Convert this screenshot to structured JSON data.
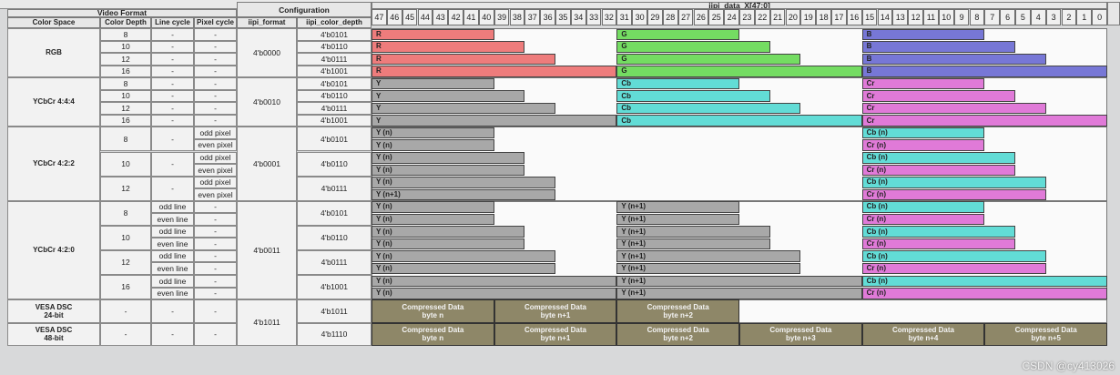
{
  "header": {
    "video_format": "Video Format",
    "configuration": "Configuration",
    "data_bus": "iipi_data_X[47:0]",
    "color_space": "Color Space",
    "color_depth": "Color Depth",
    "line_cycle": "Line cycle",
    "pixel_cycle": "Pixel cycle",
    "iipi_format": "iipi_format",
    "iipi_color_depth": "iipi_color_depth"
  },
  "bit_numbers": [
    "47",
    "46",
    "45",
    "44",
    "43",
    "42",
    "41",
    "40",
    "39",
    "38",
    "37",
    "36",
    "35",
    "34",
    "33",
    "32",
    "31",
    "30",
    "29",
    "28",
    "27",
    "26",
    "25",
    "24",
    "23",
    "22",
    "21",
    "20",
    "19",
    "18",
    "17",
    "16",
    "15",
    "14",
    "13",
    "12",
    "11",
    "10",
    "9",
    "8",
    "7",
    "6",
    "5",
    "4",
    "3",
    "2",
    "1",
    "0"
  ],
  "rows": [
    {
      "space": "RGB",
      "depth": "8",
      "line": "-",
      "pixel": "-",
      "format": "4'b0000",
      "cd": "4'b0101",
      "segs": [
        [
          "R",
          "#ee7c7c",
          1,
          0.5
        ],
        [
          "G",
          "#74dc62",
          2,
          0.5
        ],
        [
          "B",
          "#7777d6",
          3,
          0.5
        ]
      ]
    },
    {
      "space": "",
      "depth": "10",
      "line": "-",
      "pixel": "-",
      "format": "",
      "cd": "4'b0110",
      "segs": [
        [
          "R",
          "#ee7c7c",
          1,
          0.625
        ],
        [
          "G",
          "#74dc62",
          2,
          0.625
        ],
        [
          "B",
          "#7777d6",
          3,
          0.625
        ]
      ]
    },
    {
      "space": "",
      "depth": "12",
      "line": "-",
      "pixel": "-",
      "format": "",
      "cd": "4'b0111",
      "segs": [
        [
          "R",
          "#ee7c7c",
          1,
          0.75
        ],
        [
          "G",
          "#74dc62",
          2,
          0.75
        ],
        [
          "B",
          "#7777d6",
          3,
          0.75
        ]
      ]
    },
    {
      "space": "",
      "depth": "16",
      "line": "-",
      "pixel": "-",
      "format": "",
      "cd": "4'b1001",
      "segs": [
        [
          "R",
          "#ee7c7c",
          1,
          1
        ],
        [
          "G",
          "#74dc62",
          2,
          1
        ],
        [
          "B",
          "#7777d6",
          3,
          1
        ]
      ]
    },
    {
      "space": "YCbCr 4:4:4",
      "depth": "8",
      "line": "-",
      "pixel": "-",
      "format": "4'b0010",
      "cd": "4'b0101",
      "segs": [
        [
          "Y",
          "#a8a8a8",
          1,
          0.5
        ],
        [
          "Cb",
          "#62dcd6",
          2,
          0.5
        ],
        [
          "Cr",
          "#e07ad8",
          3,
          0.5
        ]
      ]
    },
    {
      "space": "",
      "depth": "10",
      "line": "-",
      "pixel": "-",
      "format": "",
      "cd": "4'b0110",
      "segs": [
        [
          "Y",
          "#a8a8a8",
          1,
          0.625
        ],
        [
          "Cb",
          "#62dcd6",
          2,
          0.625
        ],
        [
          "Cr",
          "#e07ad8",
          3,
          0.625
        ]
      ]
    },
    {
      "space": "",
      "depth": "12",
      "line": "-",
      "pixel": "-",
      "format": "",
      "cd": "4'b0111",
      "segs": [
        [
          "Y",
          "#a8a8a8",
          1,
          0.75
        ],
        [
          "Cb",
          "#62dcd6",
          2,
          0.75
        ],
        [
          "Cr",
          "#e07ad8",
          3,
          0.75
        ]
      ]
    },
    {
      "space": "",
      "depth": "16",
      "line": "-",
      "pixel": "-",
      "format": "",
      "cd": "4'b1001",
      "segs": [
        [
          "Y",
          "#a8a8a8",
          1,
          1
        ],
        [
          "Cb",
          "#62dcd6",
          2,
          1
        ],
        [
          "Cr",
          "#e07ad8",
          3,
          1
        ]
      ]
    },
    {
      "space": "YCbCr 4:2:2",
      "depth": "8",
      "line": "-",
      "pixel": "odd pixel",
      "format": "4'b0001",
      "cd": "4'b0101",
      "segs": [
        [
          "Y (n)",
          "#a8a8a8",
          1,
          0.5
        ],
        [
          "Cb (n)",
          "#62dcd6",
          3,
          0.5
        ]
      ]
    },
    {
      "space": "",
      "depth": "",
      "line": "",
      "pixel": "even pixel",
      "format": "",
      "cd": "",
      "segs": [
        [
          "Y (n)",
          "#a8a8a8",
          1,
          0.5
        ],
        [
          "Cr (n)",
          "#e07ad8",
          3,
          0.5
        ]
      ]
    },
    {
      "space": "",
      "depth": "10",
      "line": "-",
      "pixel": "odd pixel",
      "format": "",
      "cd": "4'b0110",
      "segs": [
        [
          "Y (n)",
          "#a8a8a8",
          1,
          0.625
        ],
        [
          "Cb (n)",
          "#62dcd6",
          3,
          0.625
        ]
      ]
    },
    {
      "space": "",
      "depth": "",
      "line": "",
      "pixel": "even pixel",
      "format": "",
      "cd": "",
      "segs": [
        [
          "Y (n)",
          "#a8a8a8",
          1,
          0.625
        ],
        [
          "Cr (n)",
          "#e07ad8",
          3,
          0.625
        ]
      ]
    },
    {
      "space": "",
      "depth": "12",
      "line": "-",
      "pixel": "odd pixel",
      "format": "",
      "cd": "4'b0111",
      "segs": [
        [
          "Y (n)",
          "#a8a8a8",
          1,
          0.75
        ],
        [
          "Cb (n)",
          "#62dcd6",
          3,
          0.75
        ]
      ]
    },
    {
      "space": "",
      "depth": "",
      "line": "",
      "pixel": "even pixel",
      "format": "",
      "cd": "",
      "segs": [
        [
          "Y (n+1)",
          "#a8a8a8",
          1,
          0.75
        ],
        [
          "Cr (n)",
          "#e07ad8",
          3,
          0.75
        ]
      ]
    },
    {
      "space": "YCbCr 4:2:0",
      "depth": "8",
      "line": "odd line",
      "pixel": "-",
      "format": "4'b0011",
      "cd": "4'b0101",
      "segs": [
        [
          "Y (n)",
          "#a8a8a8",
          1,
          0.5
        ],
        [
          "Y (n+1)",
          "#a8a8a8",
          2,
          0.5
        ],
        [
          "Cb (n)",
          "#62dcd6",
          3,
          0.5
        ]
      ]
    },
    {
      "space": "",
      "depth": "",
      "line": "even line",
      "pixel": "-",
      "format": "",
      "cd": "",
      "segs": [
        [
          "Y (n)",
          "#a8a8a8",
          1,
          0.5
        ],
        [
          "Y (n+1)",
          "#a8a8a8",
          2,
          0.5
        ],
        [
          "Cr (n)",
          "#e07ad8",
          3,
          0.5
        ]
      ]
    },
    {
      "space": "",
      "depth": "10",
      "line": "odd line",
      "pixel": "-",
      "format": "",
      "cd": "4'b0110",
      "segs": [
        [
          "Y (n)",
          "#a8a8a8",
          1,
          0.625
        ],
        [
          "Y (n+1)",
          "#a8a8a8",
          2,
          0.625
        ],
        [
          "Cb (n)",
          "#62dcd6",
          3,
          0.625
        ]
      ]
    },
    {
      "space": "",
      "depth": "",
      "line": "even line",
      "pixel": "-",
      "format": "",
      "cd": "",
      "segs": [
        [
          "Y (n)",
          "#a8a8a8",
          1,
          0.625
        ],
        [
          "Y (n+1)",
          "#a8a8a8",
          2,
          0.625
        ],
        [
          "Cr (n)",
          "#e07ad8",
          3,
          0.625
        ]
      ]
    },
    {
      "space": "",
      "depth": "12",
      "line": "odd line",
      "pixel": "-",
      "format": "",
      "cd": "4'b0111",
      "segs": [
        [
          "Y (n)",
          "#a8a8a8",
          1,
          0.75
        ],
        [
          "Y (n+1)",
          "#a8a8a8",
          2,
          0.75
        ],
        [
          "Cb (n)",
          "#62dcd6",
          3,
          0.75
        ]
      ]
    },
    {
      "space": "",
      "depth": "",
      "line": "even line",
      "pixel": "-",
      "format": "",
      "cd": "",
      "segs": [
        [
          "Y (n)",
          "#a8a8a8",
          1,
          0.75
        ],
        [
          "Y (n+1)",
          "#a8a8a8",
          2,
          0.75
        ],
        [
          "Cr (n)",
          "#e07ad8",
          3,
          0.75
        ]
      ]
    },
    {
      "space": "",
      "depth": "16",
      "line": "odd line",
      "pixel": "-",
      "format": "",
      "cd": "4'b1001",
      "segs": [
        [
          "Y (n)",
          "#a8a8a8",
          1,
          1
        ],
        [
          "Y (n+1)",
          "#a8a8a8",
          2,
          1
        ],
        [
          "Cb (n)",
          "#62dcd6",
          3,
          1
        ]
      ]
    },
    {
      "space": "",
      "depth": "",
      "line": "even line",
      "pixel": "-",
      "format": "",
      "cd": "",
      "segs": [
        [
          "Y (n)",
          "#a8a8a8",
          1,
          1
        ],
        [
          "Y (n+1)",
          "#a8a8a8",
          2,
          1
        ],
        [
          "Cr (n)",
          "#e07ad8",
          3,
          1
        ]
      ]
    }
  ],
  "dsc": [
    {
      "space": "VESA DSC\n24-bit",
      "depth": "-",
      "line": "-",
      "pixel": "-",
      "cd": "4'b1011",
      "bytes": [
        "Compressed Data\nbyte n",
        "Compressed Data\nbyte n+1",
        "Compressed Data\nbyte n+2"
      ]
    },
    {
      "space": "VESA DSC\n48-bit",
      "depth": "-",
      "line": "-",
      "pixel": "-",
      "cd": "4'b1110",
      "bytes": [
        "Compressed Data\nbyte n",
        "Compressed Data\nbyte n+1",
        "Compressed Data\nbyte n+2",
        "Compressed Data\nbyte n+3",
        "Compressed Data\nbyte n+4",
        "Compressed Data\nbyte n+5"
      ]
    }
  ],
  "dsc_format": "4'b1011",
  "dsc_color": "#8e8768",
  "watermark": "CSDN @cy413026"
}
